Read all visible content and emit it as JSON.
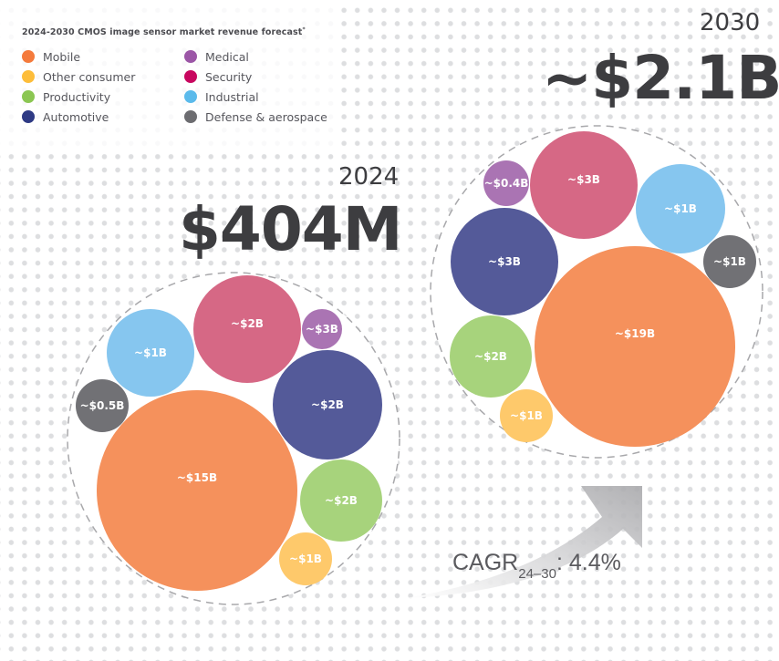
{
  "chart_data": {
    "type": "bubble",
    "title": "2024-2030 CMOS image sensor market revenue forecast",
    "title_footnote_marker": "*",
    "legend": [
      {
        "name": "Mobile",
        "color": "#F47A3C"
      },
      {
        "name": "Other consumer",
        "color": "#FDBD3A"
      },
      {
        "name": "Productivity",
        "color": "#8BC652"
      },
      {
        "name": "Automotive",
        "color": "#2E3A84"
      },
      {
        "name": "Medical",
        "color": "#9B56A6"
      },
      {
        "name": "Security",
        "color": "#C8075F"
      },
      {
        "name": "Industrial",
        "color": "#5BBAEB"
      },
      {
        "name": "Defense & aerospace",
        "color": "#6C6C70"
      }
    ],
    "bubble_colors": {
      "Mobile": "#F5915C",
      "Other consumer": "#FEC96B",
      "Productivity": "#A7D37C",
      "Automotive": "#545A99",
      "Medical": "#AA74B3",
      "Security": "#D66885",
      "Industrial": "#86C6EF",
      "Defense & aerospace": "#717175"
    },
    "groups": [
      {
        "year": "2024",
        "total": "$404M",
        "bubbles": [
          {
            "segment": "Mobile",
            "label": "~$15B"
          },
          {
            "segment": "Other consumer",
            "label": "~$1B"
          },
          {
            "segment": "Productivity",
            "label": "~$2B"
          },
          {
            "segment": "Automotive",
            "label": "~$2B"
          },
          {
            "segment": "Medical",
            "label": "~$3B"
          },
          {
            "segment": "Security",
            "label": "~$2B"
          },
          {
            "segment": "Industrial",
            "label": "~$1B"
          },
          {
            "segment": "Defense & aerospace",
            "label": "~$0.5B"
          }
        ]
      },
      {
        "year": "2030",
        "total": "~$2.1B",
        "bubbles": [
          {
            "segment": "Mobile",
            "label": "~$19B"
          },
          {
            "segment": "Other consumer",
            "label": "~$1B"
          },
          {
            "segment": "Productivity",
            "label": "~$2B"
          },
          {
            "segment": "Automotive",
            "label": "~$3B"
          },
          {
            "segment": "Medical",
            "label": "~$0.4B"
          },
          {
            "segment": "Security",
            "label": "~$3B"
          },
          {
            "segment": "Industrial",
            "label": "~$1B"
          },
          {
            "segment": "Defense & aerospace",
            "label": "~$1B"
          }
        ]
      }
    ],
    "annotation": {
      "prefix": "CAGR",
      "subscript": "24–30",
      "suffix": ": 4.4%"
    }
  }
}
